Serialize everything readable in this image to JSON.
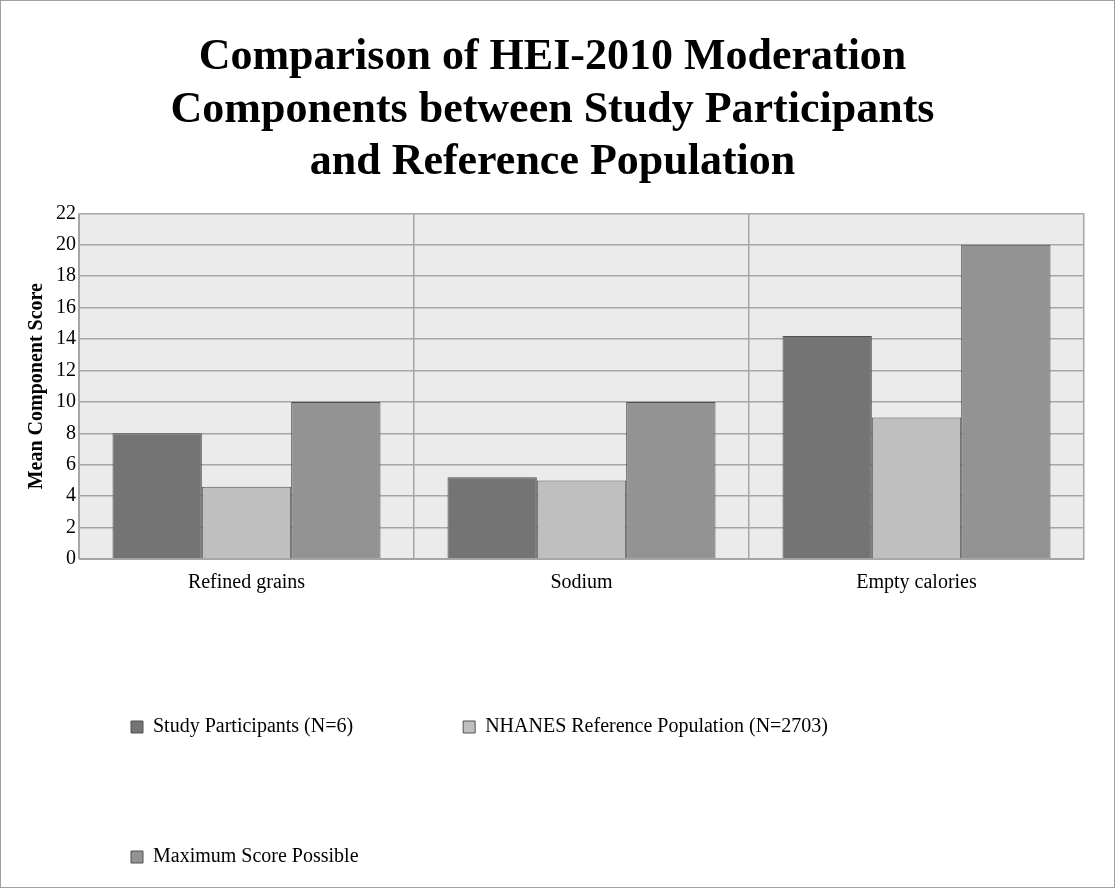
{
  "chart_data": {
    "type": "bar",
    "title": "Comparison of HEI-2010 Moderation Components between Study Participants and Reference Population",
    "ylabel": "Mean Component Score",
    "categories": [
      "Refined grains",
      "Sodium",
      "Empty calories"
    ],
    "series": [
      {
        "name": "Study Participants (N=6)",
        "color": "#747474",
        "values": [
          8.0,
          5.2,
          14.2
        ]
      },
      {
        "name": "NHANES Reference Population (N=2703)",
        "color": "#bfbfbf",
        "values": [
          4.6,
          5.0,
          9.0
        ]
      },
      {
        "name": "Maximum Score Possible",
        "color": "#939393",
        "values": [
          10,
          10,
          20
        ]
      }
    ],
    "ylim": [
      0,
      22
    ],
    "yticks": [
      0,
      2,
      4,
      6,
      8,
      10,
      12,
      14,
      16,
      18,
      20,
      22
    ],
    "grid": true,
    "legend": "bottom"
  }
}
